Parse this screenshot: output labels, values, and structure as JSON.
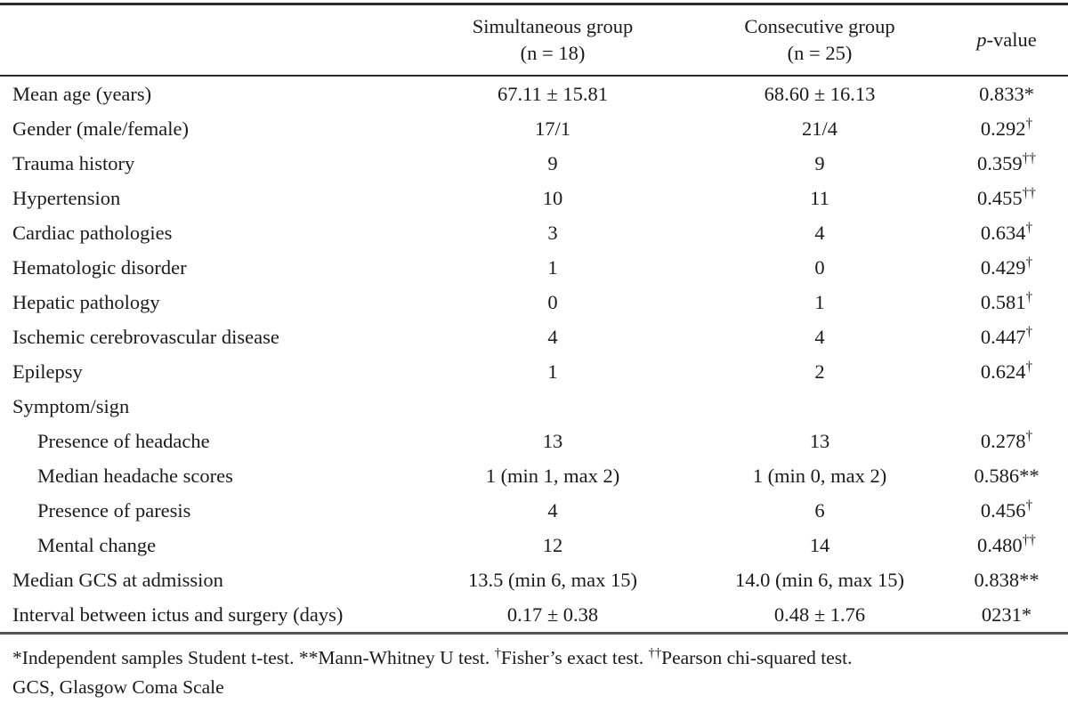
{
  "table": {
    "columns": {
      "simultaneous": {
        "line1": "Simultaneous group",
        "line2": "(n = 18)"
      },
      "consecutive": {
        "line1": "Consecutive group",
        "line2": "(n = 25)"
      },
      "pvalue": {
        "italic": "p",
        "rest": "-value"
      }
    },
    "rows": [
      {
        "label": "Mean age (years)",
        "indent": false,
        "sim": "67.11 ± 15.81",
        "con": "68.60 ± 16.13",
        "p": "0.833",
        "p_marker": "*"
      },
      {
        "label": "Gender (male/female)",
        "indent": false,
        "sim": "17/1",
        "con": "21/4",
        "p": "0.292",
        "p_marker": "†"
      },
      {
        "label": "Trauma history",
        "indent": false,
        "sim": "9",
        "con": "9",
        "p": "0.359",
        "p_marker": "††"
      },
      {
        "label": "Hypertension",
        "indent": false,
        "sim": "10",
        "con": "11",
        "p": "0.455",
        "p_marker": "††"
      },
      {
        "label": "Cardiac pathologies",
        "indent": false,
        "sim": "3",
        "con": "4",
        "p": "0.634",
        "p_marker": "†"
      },
      {
        "label": "Hematologic disorder",
        "indent": false,
        "sim": "1",
        "con": "0",
        "p": "0.429",
        "p_marker": "†"
      },
      {
        "label": "Hepatic pathology",
        "indent": false,
        "sim": "0",
        "con": "1",
        "p": "0.581",
        "p_marker": "†"
      },
      {
        "label": "Ischemic cerebrovascular disease",
        "indent": false,
        "sim": "4",
        "con": "4",
        "p": "0.447",
        "p_marker": "†"
      },
      {
        "label": "Epilepsy",
        "indent": false,
        "sim": "1",
        "con": "2",
        "p": "0.624",
        "p_marker": "†"
      },
      {
        "label": "Symptom/sign",
        "indent": false,
        "sim": "",
        "con": "",
        "p": "",
        "p_marker": ""
      },
      {
        "label": "Presence of headache",
        "indent": true,
        "sim": "13",
        "con": "13",
        "p": "0.278",
        "p_marker": "†"
      },
      {
        "label": "Median headache scores",
        "indent": true,
        "sim": "1 (min 1, max 2)",
        "con": "1 (min 0, max 2)",
        "p": "0.586",
        "p_marker": "**"
      },
      {
        "label": "Presence of paresis",
        "indent": true,
        "sim": "4",
        "con": "6",
        "p": "0.456",
        "p_marker": "†"
      },
      {
        "label": "Mental change",
        "indent": true,
        "sim": "12",
        "con": "14",
        "p": "0.480",
        "p_marker": "††"
      },
      {
        "label": "Median GCS at admission",
        "indent": false,
        "sim": "13.5 (min 6, max 15)",
        "con": "14.0 (min 6, max 15)",
        "p": "0.838",
        "p_marker": "**"
      },
      {
        "label": "Interval between ictus and surgery (days)",
        "indent": false,
        "sim": "0.17 ± 0.38",
        "con": "0.48 ± 1.76",
        "p": "0231",
        "p_marker": "*"
      }
    ]
  },
  "footnotes": {
    "segments": [
      {
        "marker": "*",
        "sup": false,
        "text": "Independent samples Student t-test. "
      },
      {
        "marker": "**",
        "sup": false,
        "text": "Mann-Whitney U test. "
      },
      {
        "marker": "†",
        "sup": true,
        "text": "Fisher’s exact test. "
      },
      {
        "marker": "††",
        "sup": true,
        "text": "Pearson chi-squared test."
      }
    ],
    "line2": "GCS, Glasgow Coma Scale"
  }
}
